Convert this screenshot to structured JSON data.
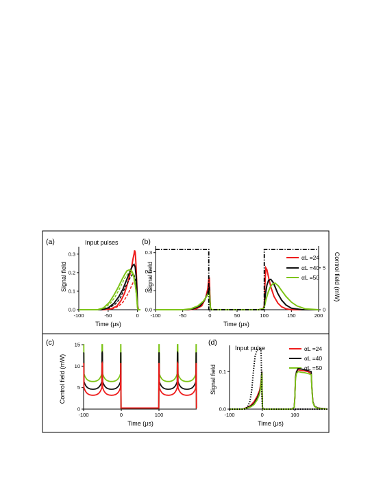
{
  "chart_data": [
    {
      "panel": "(a)",
      "type": "line",
      "annotation": "Input pulses",
      "xlabel": "Time (μs)",
      "ylabel": "Signal field",
      "xlim": [
        -100,
        5
      ],
      "ylim": [
        0,
        0.34
      ],
      "xticks": [
        "-100",
        "-50",
        "0"
      ],
      "yticks": [
        "0.0",
        "0.1",
        "0.2",
        "0.3"
      ],
      "series": [
        {
          "color": "#ee1c1c",
          "style": "solid",
          "x": [
            -100,
            -60,
            -45,
            -35,
            -28,
            -22,
            -17,
            -13,
            -10,
            -8,
            -6,
            -5,
            -4,
            -3,
            -2,
            -1,
            0,
            1,
            2,
            5
          ],
          "y": [
            0,
            0,
            0.005,
            0.02,
            0.05,
            0.09,
            0.14,
            0.19,
            0.23,
            0.27,
            0.3,
            0.32,
            0.31,
            0.27,
            0.2,
            0.12,
            0.03,
            0.005,
            0,
            0
          ]
        },
        {
          "color": "#ee1c1c",
          "style": "dashed",
          "x": [
            -100,
            -55,
            -42,
            -32,
            -25,
            -19,
            -14,
            -10,
            -7,
            -5,
            -3,
            -1,
            0,
            1,
            5
          ],
          "y": [
            0,
            0,
            0.005,
            0.02,
            0.04,
            0.07,
            0.1,
            0.13,
            0.15,
            0.16,
            0.14,
            0.08,
            0.02,
            0,
            0
          ]
        },
        {
          "color": "#111111",
          "style": "solid",
          "x": [
            -100,
            -62,
            -50,
            -40,
            -32,
            -25,
            -20,
            -15,
            -11,
            -8,
            -6,
            -4,
            -2,
            -1,
            0,
            1,
            5
          ],
          "y": [
            0,
            0,
            0.01,
            0.035,
            0.07,
            0.11,
            0.15,
            0.19,
            0.22,
            0.24,
            0.245,
            0.23,
            0.17,
            0.1,
            0.02,
            0,
            0
          ]
        },
        {
          "color": "#111111",
          "style": "dashed",
          "x": [
            -100,
            -60,
            -48,
            -38,
            -30,
            -24,
            -18,
            -13,
            -9,
            -6,
            -3,
            -1,
            0,
            1,
            5
          ],
          "y": [
            0,
            0,
            0.01,
            0.03,
            0.06,
            0.1,
            0.14,
            0.17,
            0.19,
            0.19,
            0.15,
            0.08,
            0.02,
            0,
            0
          ]
        },
        {
          "color": "#7dc418",
          "style": "solid",
          "x": [
            -100,
            -68,
            -58,
            -48,
            -40,
            -33,
            -27,
            -22,
            -18,
            -14,
            -10,
            -7,
            -4,
            -2,
            -1,
            0,
            1,
            5
          ],
          "y": [
            0,
            0,
            0.01,
            0.04,
            0.08,
            0.12,
            0.16,
            0.19,
            0.21,
            0.215,
            0.21,
            0.19,
            0.14,
            0.09,
            0.05,
            0.01,
            0,
            0
          ]
        },
        {
          "color": "#7dc418",
          "style": "dashed",
          "x": [
            -100,
            -66,
            -56,
            -46,
            -38,
            -31,
            -25,
            -20,
            -15,
            -11,
            -7,
            -4,
            -2,
            -1,
            0,
            1,
            5
          ],
          "y": [
            0,
            0,
            0.01,
            0.035,
            0.07,
            0.11,
            0.15,
            0.18,
            0.2,
            0.2,
            0.18,
            0.13,
            0.08,
            0.04,
            0.01,
            0,
            0
          ]
        }
      ]
    },
    {
      "panel": "(b)",
      "type": "line",
      "xlabel": "Time (μs)",
      "ylabel": "Signal field",
      "ylabel_right": "Control field (mW)",
      "xlim": [
        -100,
        200
      ],
      "ylim": [
        0,
        0.335
      ],
      "ylim_right": [
        0,
        7.6
      ],
      "xticks": [
        "-100",
        "-50",
        "0",
        "50",
        "100",
        "150",
        "200"
      ],
      "yticks": [
        "0.0",
        "0.1",
        "0.2",
        "0.3"
      ],
      "yticks_right": [
        "0",
        "5"
      ],
      "legend": [
        "αL =24",
        "αL =40",
        "αL =50"
      ],
      "control": {
        "x": [
          -100,
          -2,
          -2,
          100,
          100,
          200
        ],
        "y": [
          7.2,
          7.2,
          0,
          0,
          7.2,
          7.2
        ]
      },
      "series": [
        {
          "name": "αL =24",
          "color": "#ee1c1c",
          "x": [
            -100,
            -40,
            -25,
            -15,
            -8,
            -4,
            -2,
            -1,
            0,
            1,
            3,
            10,
            60,
            90,
            98,
            100,
            101,
            103,
            105,
            108,
            112,
            118,
            125,
            132,
            140,
            150,
            170,
            200
          ],
          "y": [
            0,
            0,
            0.005,
            0.02,
            0.06,
            0.11,
            0.16,
            0.17,
            0.08,
            0.01,
            0,
            0,
            0,
            0,
            0.005,
            0.02,
            0.12,
            0.22,
            0.21,
            0.17,
            0.12,
            0.07,
            0.035,
            0.015,
            0.005,
            0,
            0,
            0
          ]
        },
        {
          "name": "αL =40",
          "color": "#111111",
          "x": [
            -100,
            -45,
            -30,
            -18,
            -10,
            -5,
            -2,
            -1,
            0,
            1,
            3,
            10,
            60,
            90,
            98,
            100,
            102,
            105,
            108,
            112,
            116,
            120,
            125,
            132,
            140,
            150,
            170,
            200
          ],
          "y": [
            0,
            0,
            0.005,
            0.02,
            0.05,
            0.08,
            0.11,
            0.12,
            0.06,
            0.01,
            0,
            0,
            0,
            0,
            0.005,
            0.015,
            0.08,
            0.13,
            0.155,
            0.16,
            0.145,
            0.12,
            0.085,
            0.05,
            0.025,
            0.008,
            0,
            0
          ]
        },
        {
          "name": "αL =50",
          "color": "#7dc418",
          "x": [
            -100,
            -50,
            -35,
            -22,
            -12,
            -6,
            -2,
            -1,
            0,
            1,
            3,
            10,
            60,
            90,
            98,
            100,
            103,
            107,
            111,
            115,
            120,
            126,
            132,
            140,
            150,
            160,
            175,
            200
          ],
          "y": [
            0,
            0,
            0.005,
            0.02,
            0.045,
            0.07,
            0.09,
            0.1,
            0.05,
            0.01,
            0,
            0,
            0,
            0,
            0.005,
            0.012,
            0.05,
            0.09,
            0.12,
            0.135,
            0.14,
            0.125,
            0.1,
            0.07,
            0.04,
            0.02,
            0.005,
            0
          ]
        }
      ]
    },
    {
      "panel": "(c)",
      "type": "line",
      "xlabel": "Time (μs)",
      "ylabel": "Control field (mW)",
      "xlim": [
        -100,
        200
      ],
      "ylim": [
        0,
        15
      ],
      "xticks": [
        "-100",
        "0",
        "100"
      ],
      "yticks": [
        "0",
        "5",
        "10",
        "15"
      ],
      "series": [
        {
          "color": "#7dc418",
          "amp": 14,
          "min": 6.3
        },
        {
          "color": "#111111",
          "amp": 11,
          "min": 4.5
        },
        {
          "color": "#ee1c1c",
          "amp": 8.5,
          "min": 3.1
        }
      ]
    },
    {
      "panel": "(d)",
      "type": "line",
      "annotation": "Input pulse",
      "xlabel": "Time (μs)",
      "ylabel": "Signal field",
      "xlim": [
        -100,
        200
      ],
      "ylim": [
        0,
        0.17
      ],
      "xticks": [
        "-100",
        "0",
        "100"
      ],
      "yticks": [
        "0.0",
        "0.1"
      ],
      "legend": [
        "αL =24",
        "αL =40",
        "αL =50"
      ],
      "input_pulse": {
        "x": [
          -100,
          -55,
          -45,
          -38,
          -32,
          -27,
          -22,
          -16,
          -10,
          -6,
          -4,
          -3,
          -2,
          -1,
          0,
          2,
          10,
          200
        ],
        "y": [
          0,
          0,
          0.005,
          0.02,
          0.05,
          0.1,
          0.14,
          0.157,
          0.16,
          0.16,
          0.158,
          0.14,
          0.09,
          0.04,
          0.01,
          0,
          0,
          0
        ]
      },
      "series": [
        {
          "name": "αL =24",
          "color": "#ee1c1c",
          "x": [
            -100,
            -60,
            -45,
            -35,
            -25,
            -15,
            -8,
            -4,
            -2,
            -1,
            0,
            1,
            3,
            10,
            90,
            98,
            100,
            102,
            105,
            110,
            120,
            130,
            140,
            150,
            152,
            155,
            160,
            170,
            200
          ],
          "y": [
            0,
            0,
            0.005,
            0.01,
            0.02,
            0.035,
            0.05,
            0.07,
            0.09,
            0.1,
            0.04,
            0.005,
            0,
            0,
            0,
            0.005,
            0.03,
            0.085,
            0.1,
            0.105,
            0.103,
            0.102,
            0.1,
            0.095,
            0.06,
            0.02,
            0.008,
            0.003,
            0
          ]
        },
        {
          "name": "αL =40",
          "color": "#111111",
          "x": [
            -100,
            -60,
            -45,
            -35,
            -25,
            -15,
            -8,
            -4,
            -2,
            -1,
            0,
            1,
            3,
            10,
            90,
            98,
            100,
            102,
            105,
            110,
            120,
            130,
            140,
            150,
            152,
            155,
            160,
            170,
            200
          ],
          "y": [
            0,
            0,
            0.004,
            0.008,
            0.015,
            0.03,
            0.045,
            0.065,
            0.09,
            0.1,
            0.04,
            0.005,
            0,
            0,
            0,
            0.005,
            0.03,
            0.085,
            0.1,
            0.108,
            0.107,
            0.105,
            0.103,
            0.1,
            0.06,
            0.02,
            0.008,
            0.003,
            0
          ]
        },
        {
          "name": "αL =50",
          "color": "#7dc418",
          "x": [
            -100,
            -60,
            -45,
            -35,
            -25,
            -15,
            -8,
            -4,
            -2,
            -1,
            0,
            1,
            3,
            10,
            90,
            98,
            100,
            102,
            105,
            110,
            120,
            130,
            140,
            150,
            152,
            155,
            160,
            170,
            200
          ],
          "y": [
            0,
            0,
            0.003,
            0.006,
            0.012,
            0.025,
            0.04,
            0.06,
            0.085,
            0.095,
            0.04,
            0.005,
            0,
            0,
            0,
            0.005,
            0.03,
            0.08,
            0.095,
            0.1,
            0.098,
            0.097,
            0.095,
            0.092,
            0.055,
            0.018,
            0.007,
            0.002,
            0
          ]
        }
      ]
    }
  ]
}
